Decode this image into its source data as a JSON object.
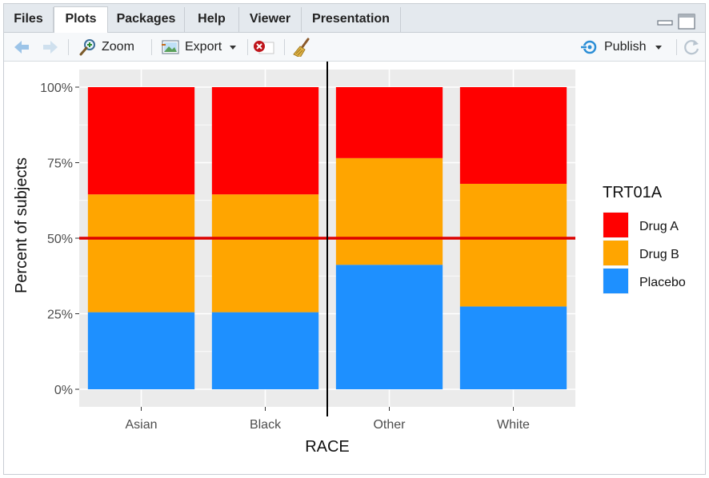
{
  "tabs": [
    {
      "label": "Files",
      "active": false
    },
    {
      "label": "Plots",
      "active": true
    },
    {
      "label": "Packages",
      "active": false
    },
    {
      "label": "Help",
      "active": false
    },
    {
      "label": "Viewer",
      "active": false
    },
    {
      "label": "Presentation",
      "active": false
    }
  ],
  "toolbar": {
    "zoom_label": "Zoom",
    "export_label": "Export",
    "publish_label": "Publish"
  },
  "chart_data": {
    "type": "bar",
    "stacked": true,
    "categories": [
      "Asian",
      "Black",
      "Other",
      "White"
    ],
    "series": [
      {
        "name": "Placebo",
        "color": "#1e90ff",
        "values": [
          25.5,
          25.5,
          41.2,
          27.4
        ]
      },
      {
        "name": "Drug B",
        "color": "#ffa500",
        "values": [
          39.0,
          39.0,
          35.3,
          40.6
        ]
      },
      {
        "name": "Drug A",
        "color": "#ff0000",
        "values": [
          35.5,
          35.5,
          23.5,
          32.0
        ]
      }
    ],
    "legend_order": [
      "Drug A",
      "Drug B",
      "Placebo"
    ],
    "legend_title": "TRT01A",
    "legend_position": "right",
    "xlabel": "RACE",
    "ylabel": "Percent of subjects",
    "ylim": [
      0,
      100
    ],
    "yticks": [
      "0%",
      "25%",
      "50%",
      "75%",
      "100%"
    ],
    "ytick_values": [
      0,
      25,
      50,
      75,
      100
    ],
    "hline": {
      "value": 50,
      "color": "#dd0000"
    },
    "vline": {
      "between": [
        "Black",
        "Other"
      ],
      "color": "#000000"
    },
    "grid": true,
    "panel_background": "#ebebeb"
  }
}
